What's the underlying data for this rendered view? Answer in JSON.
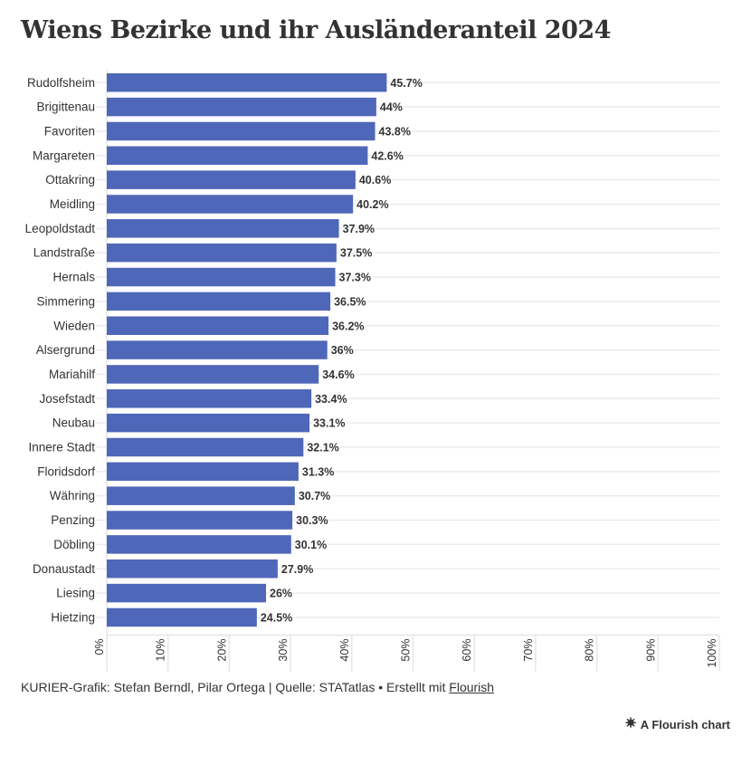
{
  "chart_data": {
    "type": "bar",
    "orientation": "horizontal",
    "title": "Wiens Bezirke und ihr Ausländeranteil 2024",
    "xlabel": "",
    "ylabel": "",
    "xlim": [
      0,
      100
    ],
    "grid": true,
    "bar_color": "#4f67b8",
    "categories": [
      "Rudolfsheim",
      "Brigittenau",
      "Favoriten",
      "Margareten",
      "Ottakring",
      "Meidling",
      "Leopoldstadt",
      "Landstraße",
      "Hernals",
      "Simmering",
      "Wieden",
      "Alsergrund",
      "Mariahilf",
      "Josefstadt",
      "Neubau",
      "Innere Stadt",
      "Floridsdorf",
      "Währing",
      "Penzing",
      "Döbling",
      "Donaustadt",
      "Liesing",
      "Hietzing"
    ],
    "values": [
      45.7,
      44,
      43.8,
      42.6,
      40.6,
      40.2,
      37.9,
      37.5,
      37.3,
      36.5,
      36.2,
      36,
      34.6,
      33.4,
      33.1,
      32.1,
      31.3,
      30.7,
      30.3,
      30.1,
      27.9,
      26,
      24.5
    ],
    "value_labels": [
      "45.7%",
      "44%",
      "43.8%",
      "42.6%",
      "40.6%",
      "40.2%",
      "37.9%",
      "37.5%",
      "37.3%",
      "36.5%",
      "36.2%",
      "36%",
      "34.6%",
      "33.4%",
      "33.1%",
      "32.1%",
      "31.3%",
      "30.7%",
      "30.3%",
      "30.1%",
      "27.9%",
      "26%",
      "24.5%"
    ],
    "x_ticks": [
      0,
      10,
      20,
      30,
      40,
      50,
      60,
      70,
      80,
      90,
      100
    ],
    "x_tick_labels": [
      "0%",
      "10%",
      "20%",
      "30%",
      "40%",
      "50%",
      "60%",
      "70%",
      "80%",
      "90%",
      "100%"
    ]
  },
  "footer": {
    "credit": "KURIER-Grafik: Stefan Berndl, Pilar Ortega | Quelle: STATatlas • Erstellt mit ",
    "link": "Flourish"
  },
  "badge": {
    "icon": "flourish-star-icon",
    "label": "A Flourish chart"
  }
}
